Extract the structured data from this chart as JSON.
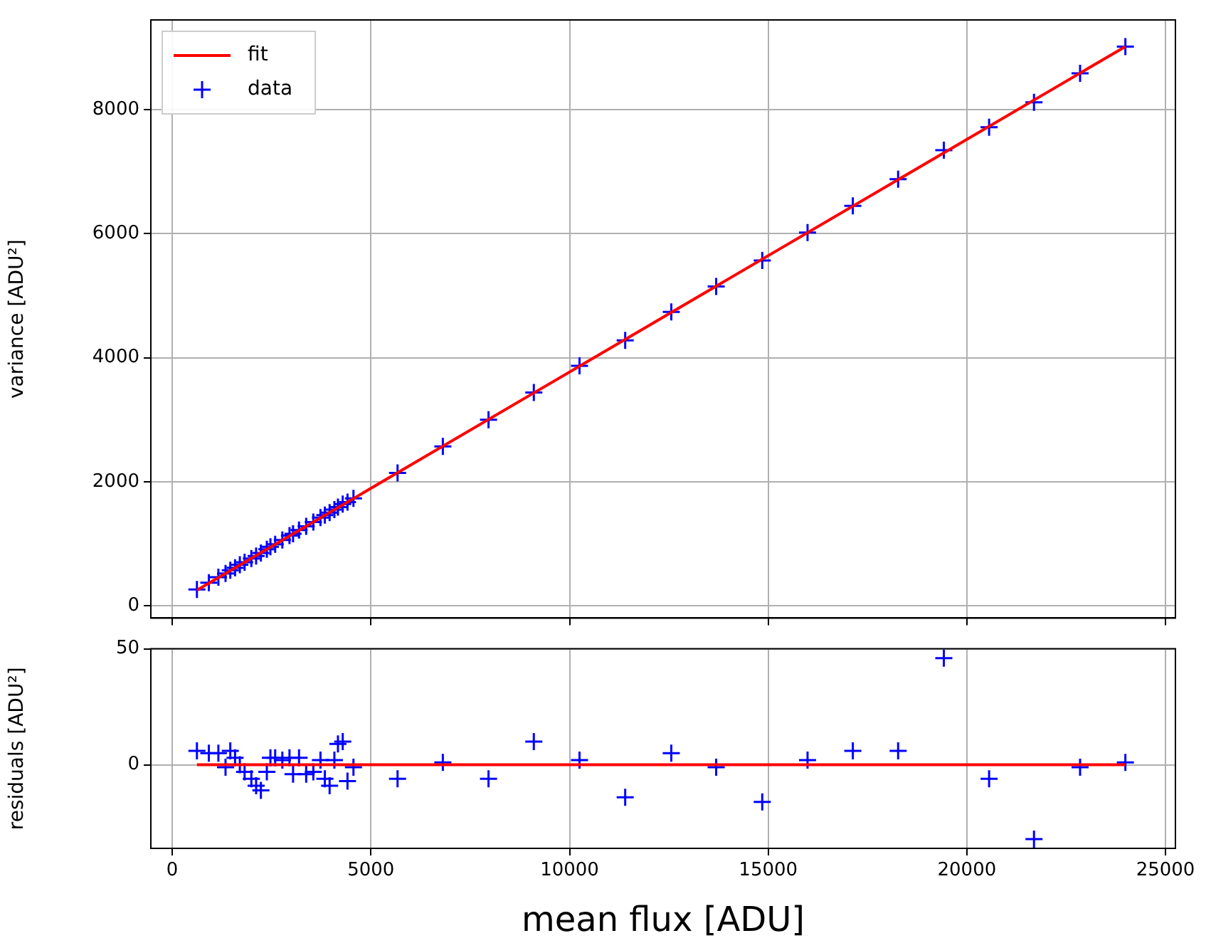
{
  "chart_data": [
    {
      "type": "scatter",
      "ylabel": "variance [ADU²]",
      "xlim": [
        -540,
        25250
      ],
      "ylim": [
        -200,
        9450
      ],
      "xticks": [
        0,
        5000,
        10000,
        15000,
        20000,
        25000
      ],
      "yticks": [
        0,
        2000,
        4000,
        6000,
        8000
      ],
      "tick_labels": "y",
      "grid": true,
      "legend": "top left",
      "series": [
        {
          "name": "fit",
          "type": "line",
          "color": "#ff0000",
          "x": [
            620,
            23990
          ],
          "values": [
            250,
            9020
          ]
        },
        {
          "name": "data",
          "type": "scatter",
          "marker": "cross",
          "color": "#0000ff",
          "x": [
            620,
            920,
            1160,
            1340,
            1460,
            1580,
            1700,
            1820,
            1990,
            2110,
            2230,
            2380,
            2470,
            2590,
            2770,
            2950,
            3040,
            3190,
            3370,
            3550,
            3730,
            3840,
            3960,
            4080,
            4170,
            4290,
            4410,
            4560,
            5670,
            6810,
            7960,
            9100,
            10250,
            11400,
            12560,
            13690,
            14850,
            15990,
            17130,
            18270,
            19420,
            20560,
            21690,
            22850,
            23990
          ],
          "values": [
            260,
            370,
            460,
            520,
            570,
            610,
            660,
            700,
            760,
            800,
            850,
            910,
            950,
            990,
            1060,
            1130,
            1160,
            1220,
            1280,
            1350,
            1420,
            1460,
            1500,
            1550,
            1590,
            1640,
            1670,
            1730,
            2140,
            2570,
            3000,
            3440,
            3870,
            4280,
            4740,
            5150,
            5570,
            6020,
            6450,
            6880,
            7350,
            7720,
            8120,
            8590,
            9020
          ]
        }
      ]
    },
    {
      "type": "scatter",
      "xlabel": "mean flux [ADU]",
      "ylabel": "residuals [ADU²]",
      "xlim": [
        -540,
        25250
      ],
      "ylim": [
        -36,
        50
      ],
      "xticks": [
        0,
        5000,
        10000,
        15000,
        20000,
        25000
      ],
      "yticks": [
        0,
        50
      ],
      "grid": true,
      "series": [
        {
          "type": "line",
          "color": "#ff0000",
          "x": [
            620,
            23990
          ],
          "values": [
            0,
            0
          ]
        },
        {
          "type": "scatter",
          "marker": "cross",
          "color": "#0000ff",
          "x": [
            620,
            920,
            1160,
            1340,
            1460,
            1580,
            1700,
            1820,
            1990,
            2110,
            2230,
            2380,
            2470,
            2590,
            2770,
            2950,
            3040,
            3190,
            3370,
            3550,
            3730,
            3840,
            3960,
            4080,
            4170,
            4290,
            4410,
            4560,
            5670,
            6810,
            7960,
            9100,
            10250,
            11400,
            12560,
            13690,
            14850,
            15990,
            17130,
            18270,
            19420,
            20560,
            21690,
            22850,
            23990
          ],
          "values": [
            6,
            5,
            5,
            -1,
            6,
            3,
            0,
            -3,
            -6,
            -9,
            -11,
            -3,
            3,
            3,
            2,
            3,
            -4,
            3,
            -4,
            -3,
            2,
            -6,
            -9,
            2,
            9,
            10,
            -7,
            -1,
            -6,
            1,
            -6,
            10,
            2,
            -14,
            5,
            -1,
            -16,
            2,
            6,
            6,
            46,
            -6,
            -32,
            -1,
            1
          ]
        }
      ]
    }
  ]
}
